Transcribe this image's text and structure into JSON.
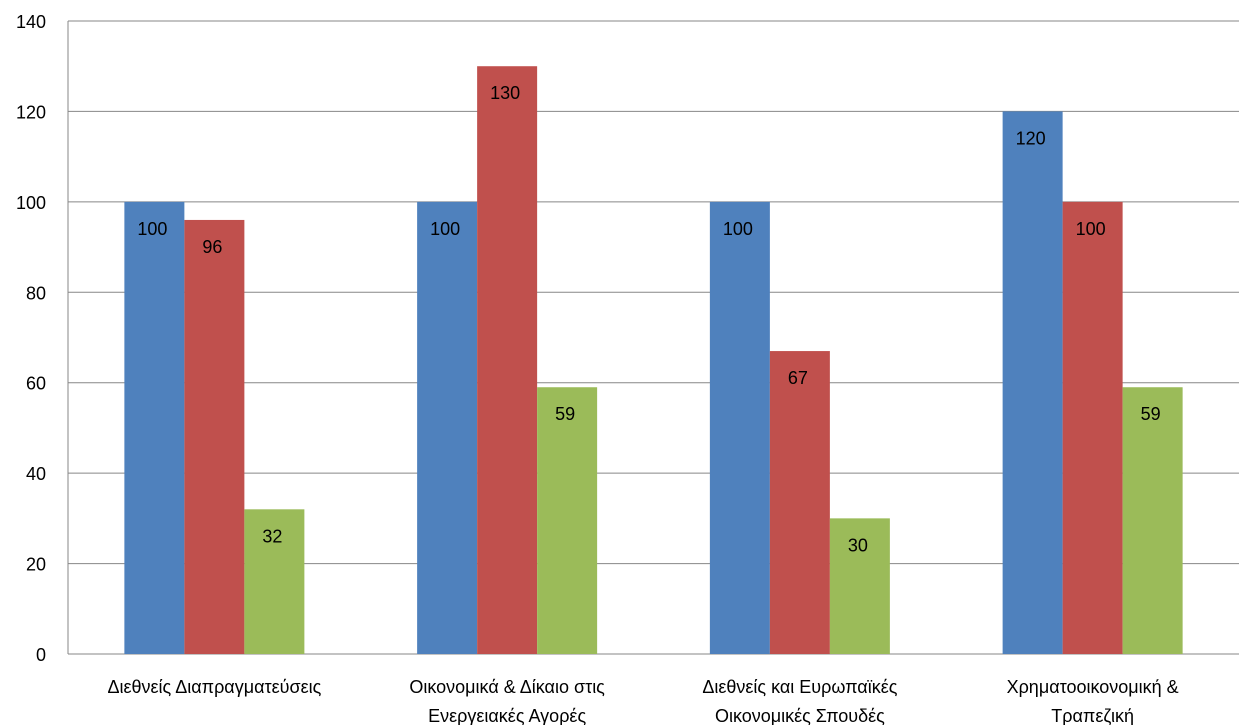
{
  "chart_data": {
    "type": "bar",
    "title": "",
    "xlabel": "",
    "ylabel": "",
    "ylim": [
      0,
      140
    ],
    "ytick_step": 20,
    "grid": true,
    "legend": "none",
    "categories": [
      [
        "Διεθνείς Διαπραγματεύσεις"
      ],
      [
        "Οικονομικά & Δίκαιο στις",
        "Ενεργειακές Αγορές"
      ],
      [
        "Διεθνείς και Ευρωπαϊκές",
        "Οικονομικές Σπουδές"
      ],
      [
        "Χρηματοοικονομική &",
        "Τραπεζική"
      ]
    ],
    "series": [
      {
        "color": "#4F81BD",
        "values": [
          100,
          100,
          100,
          120
        ]
      },
      {
        "color": "#C0504D",
        "values": [
          96,
          130,
          67,
          100
        ]
      },
      {
        "color": "#9BBB59",
        "values": [
          32,
          59,
          30,
          59
        ]
      }
    ],
    "data_labels": true
  }
}
